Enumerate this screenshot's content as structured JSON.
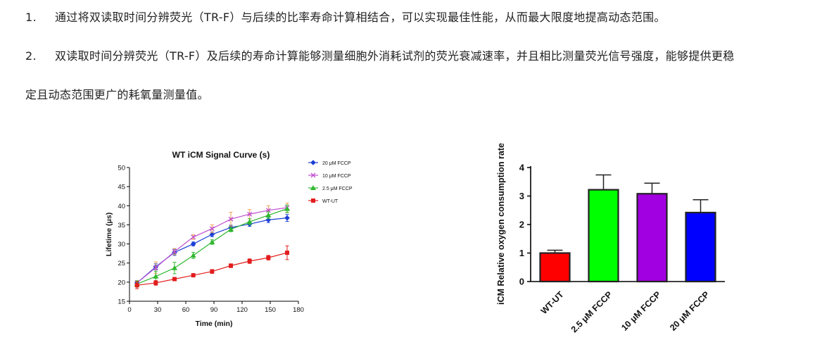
{
  "text": {
    "item1_num": "1.",
    "item1": "通过将双读取时间分辨荧光（TR-F）与后续的比率寿命计算相结合，可以实现最佳性能，从而最大限度地提高动态范围。",
    "item2_num": "2.",
    "item2_line1": "双读取时间分辨荧光（TR-F）及后续的寿命计算能够测量细胞外消耗试剂的荧光衰减速率，并且相比测量荧光信号强度，能够提供更稳",
    "item2_line2": "定且动态范围更广的耗氧量测量值。"
  },
  "chart_data": [
    {
      "type": "line",
      "title": "WT iCM Signal Curve (s)",
      "xlabel": "Time (min)",
      "ylabel": "Lifetime (μs)",
      "xlim": [
        0,
        180
      ],
      "ylim": [
        15,
        50
      ],
      "xticks": [
        0,
        30,
        60,
        90,
        120,
        150,
        180
      ],
      "yticks": [
        15,
        20,
        25,
        30,
        35,
        40,
        45,
        50
      ],
      "x": [
        8,
        28,
        48,
        68,
        88,
        108,
        128,
        148,
        168
      ],
      "legend": "top-right",
      "series": [
        {
          "name": "20 μM FCCP",
          "color": "#1a3fd6",
          "marker": "diamond",
          "values": [
            19.8,
            24.0,
            27.8,
            30.0,
            32.5,
            34.3,
            35.2,
            36.3,
            36.8
          ],
          "errors": [
            0.6,
            0.8,
            0.8,
            0.5,
            0.6,
            0.6,
            0.6,
            0.7,
            0.9
          ]
        },
        {
          "name": "10 μM FCCP",
          "color": "#c04fd0",
          "marker": "x",
          "values": [
            19.8,
            23.8,
            28.0,
            31.8,
            34.0,
            36.5,
            37.8,
            38.8,
            39.5
          ],
          "errors": [
            0.6,
            1.5,
            0.8,
            0.6,
            1.0,
            1.8,
            1.2,
            1.2,
            1.2
          ]
        },
        {
          "name": "2.5 μM FCCP",
          "color": "#2fb82f",
          "marker": "triangle",
          "values": [
            19.5,
            21.5,
            23.7,
            27.0,
            30.5,
            33.8,
            35.8,
            37.5,
            39.2
          ],
          "errors": [
            0.8,
            1.3,
            1.5,
            0.8,
            0.6,
            0.6,
            0.8,
            0.9,
            1.0
          ]
        },
        {
          "name": "WT-UT",
          "color": "#e21d1d",
          "marker": "square",
          "values": [
            19.2,
            19.8,
            20.8,
            21.8,
            22.8,
            24.3,
            25.5,
            26.4,
            27.7
          ],
          "errors": [
            0.9,
            0.6,
            0.4,
            0.4,
            0.5,
            0.5,
            0.6,
            0.6,
            1.8
          ]
        }
      ]
    },
    {
      "type": "bar",
      "ylabel": "iCM Relative oxygen consumption rate",
      "ylim": [
        0,
        4
      ],
      "yticks": [
        0,
        1,
        2,
        3,
        4
      ],
      "categories": [
        "WT-UT",
        "2.5 μM FCCP",
        "10 μM FCCP",
        "20 μM FCCP"
      ],
      "values": [
        1.0,
        3.22,
        3.08,
        2.42
      ],
      "errors": [
        0.1,
        0.52,
        0.37,
        0.45
      ],
      "colors": [
        "#ff0000",
        "#00ff00",
        "#a100e0",
        "#0000ff"
      ]
    }
  ]
}
